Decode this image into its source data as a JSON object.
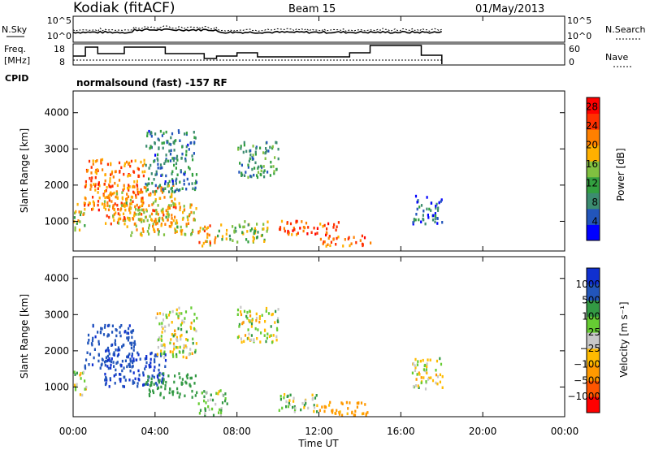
{
  "header": {
    "station": "Kodiak (fitACF)",
    "beam": "Beam 15",
    "date": "01/May/2013"
  },
  "status": {
    "nsky_label": "N.Sky",
    "nsearch_label": "N.Search",
    "freq_label_1": "Freq.",
    "freq_label_2": "[MHz]",
    "nave_label": "Nave",
    "cpid_label": "CPID",
    "cpid_text": "normalsound (fast) -157 RF",
    "noise_ticks": [
      "10^5",
      "10^0"
    ],
    "freq_ticks": [
      "18",
      "8"
    ],
    "nave_ticks": [
      "60",
      "0"
    ]
  },
  "colors": {
    "power": [
      "#0000ff",
      "#2255bb",
      "#3c8c70",
      "#33a040",
      "#80c040",
      "#ffb000",
      "#ff8000",
      "#ff3000",
      "#ff0000"
    ],
    "velocity": [
      "#ff0000",
      "#ff5500",
      "#ff9900",
      "#ffbb00",
      "#c8c8c8",
      "#66cc33",
      "#339944",
      "#2255bb",
      "#1030d0"
    ]
  },
  "chart_data": [
    {
      "type": "heatmap",
      "title": "",
      "ylabel": "Slant Range [km]",
      "xlabel": "Time UT",
      "colorbar_label": "Power [dB]",
      "colorbar_ticks": [
        4,
        8,
        12,
        16,
        20,
        24,
        28
      ],
      "color_range": [
        0,
        30
      ],
      "ylim": [
        180,
        4600
      ],
      "yticks": [
        1000,
        2000,
        3000,
        4000
      ],
      "xlim": [
        0,
        24
      ],
      "xtick_labels": [
        "00:00",
        "04:00",
        "08:00",
        "12:00",
        "16:00",
        "20:00",
        "00:00"
      ],
      "scatter_regions": [
        {
          "t0": 0.0,
          "t1": 0.6,
          "r0": 750,
          "r1": 1500,
          "value": 16
        },
        {
          "t0": 0.5,
          "t1": 3.5,
          "r0": 1300,
          "r1": 2700,
          "value": 22
        },
        {
          "t0": 1.5,
          "t1": 5.0,
          "r0": 900,
          "r1": 2000,
          "value": 20
        },
        {
          "t0": 2.5,
          "t1": 6.0,
          "r0": 600,
          "r1": 1500,
          "value": 18
        },
        {
          "t0": 3.5,
          "t1": 6.0,
          "r0": 1800,
          "r1": 3500,
          "value": 8
        },
        {
          "t0": 6.0,
          "t1": 7.0,
          "r0": 300,
          "r1": 900,
          "value": 20
        },
        {
          "t0": 8.0,
          "t1": 10.0,
          "r0": 2200,
          "r1": 3200,
          "value": 10
        },
        {
          "t0": 7.0,
          "t1": 9.5,
          "r0": 400,
          "r1": 1000,
          "value": 14
        },
        {
          "t0": 10.0,
          "t1": 13.0,
          "r0": 600,
          "r1": 1000,
          "value": 24
        },
        {
          "t0": 12.0,
          "t1": 14.5,
          "r0": 300,
          "r1": 600,
          "value": 22
        },
        {
          "t0": 16.5,
          "t1": 18.0,
          "r0": 900,
          "r1": 1700,
          "value": 6
        }
      ]
    },
    {
      "type": "heatmap",
      "title": "",
      "ylabel": "Slant Range [km]",
      "xlabel": "Time UT",
      "colorbar_label": "Velocity [m s⁻¹]",
      "colorbar_ticks": [
        1000,
        500,
        100,
        25,
        -25,
        -100,
        -500,
        -1000
      ],
      "ylim": [
        180,
        4600
      ],
      "yticks": [
        1000,
        2000,
        3000,
        4000
      ],
      "xlim": [
        0,
        24
      ],
      "xtick_labels": [
        "00:00",
        "04:00",
        "08:00",
        "12:00",
        "16:00",
        "20:00",
        "00:00"
      ],
      "scatter_regions": [
        {
          "t0": 0.0,
          "t1": 0.6,
          "r0": 750,
          "r1": 1500,
          "value": 0
        },
        {
          "t0": 0.5,
          "t1": 3.0,
          "r0": 1500,
          "r1": 2700,
          "value": 900
        },
        {
          "t0": 1.5,
          "t1": 4.5,
          "r0": 1000,
          "r1": 2000,
          "value": 1000
        },
        {
          "t0": 3.5,
          "t1": 6.0,
          "r0": 700,
          "r1": 1400,
          "value": 300
        },
        {
          "t0": 4.0,
          "t1": 6.0,
          "r0": 1800,
          "r1": 3200,
          "value": 0
        },
        {
          "t0": 6.0,
          "t1": 7.5,
          "r0": 200,
          "r1": 900,
          "value": 80
        },
        {
          "t0": 8.0,
          "t1": 10.0,
          "r0": 2200,
          "r1": 3200,
          "value": 0
        },
        {
          "t0": 10.0,
          "t1": 12.0,
          "r0": 300,
          "r1": 800,
          "value": 60
        },
        {
          "t0": 12.0,
          "t1": 14.5,
          "r0": 200,
          "r1": 600,
          "value": -200
        },
        {
          "t0": 16.5,
          "t1": 18.0,
          "r0": 900,
          "r1": 1800,
          "value": 0
        }
      ]
    }
  ]
}
